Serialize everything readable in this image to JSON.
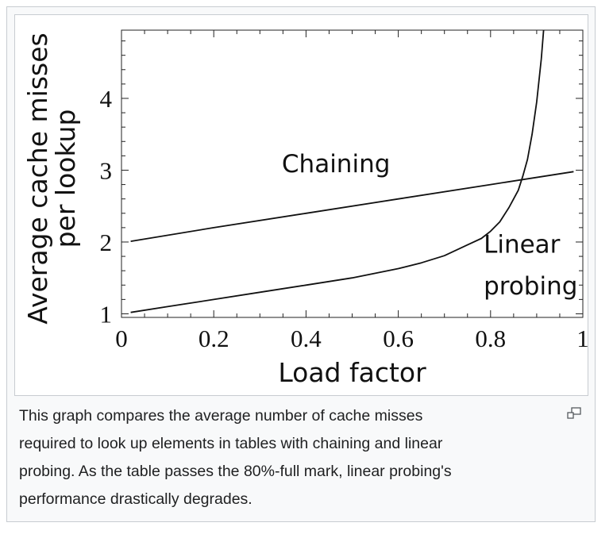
{
  "chart_data": {
    "type": "line",
    "xlabel": "Load factor",
    "ylabel_lines": [
      "Average cache misses",
      "per lookup"
    ],
    "xlim": [
      0,
      1
    ],
    "ylim": [
      0.95,
      4.95
    ],
    "x_ticks": [
      {
        "value": 0,
        "label": "0"
      },
      {
        "value": 0.2,
        "label": "0.2"
      },
      {
        "value": 0.4,
        "label": "0.4"
      },
      {
        "value": 0.6,
        "label": "0.6"
      },
      {
        "value": 0.8,
        "label": "0.8"
      },
      {
        "value": 1,
        "label": "1"
      }
    ],
    "y_ticks": [
      {
        "value": 1,
        "label": "1"
      },
      {
        "value": 2,
        "label": "2"
      },
      {
        "value": 3,
        "label": "3"
      },
      {
        "value": 4,
        "label": "4"
      }
    ],
    "grid": false,
    "series": [
      {
        "name": "Chaining",
        "x": [
          0.02,
          0.2,
          0.4,
          0.6,
          0.8,
          0.98
        ],
        "y": [
          2.01,
          2.2,
          2.4,
          2.6,
          2.8,
          2.98
        ]
      },
      {
        "name_lines": [
          "Linear",
          "probing"
        ],
        "x": [
          0.02,
          0.1,
          0.2,
          0.3,
          0.4,
          0.5,
          0.6,
          0.65,
          0.7,
          0.75,
          0.78,
          0.8,
          0.82,
          0.84,
          0.86,
          0.87,
          0.88,
          0.89,
          0.9,
          0.91,
          0.915
        ],
        "y": [
          1.02,
          1.1,
          1.2,
          1.3,
          1.4,
          1.5,
          1.63,
          1.71,
          1.81,
          1.96,
          2.05,
          2.15,
          2.28,
          2.48,
          2.72,
          2.92,
          3.15,
          3.5,
          3.95,
          4.55,
          4.95
        ]
      }
    ]
  },
  "caption": {
    "lines": [
      "This graph compares the average number of cache misses",
      "required to look up elements in tables with chaining and linear",
      "probing. As the table passes the 80%-full mark, linear probing's",
      "performance drastically degrades."
    ]
  },
  "icons": {
    "enlarge": "magnify-icon"
  }
}
